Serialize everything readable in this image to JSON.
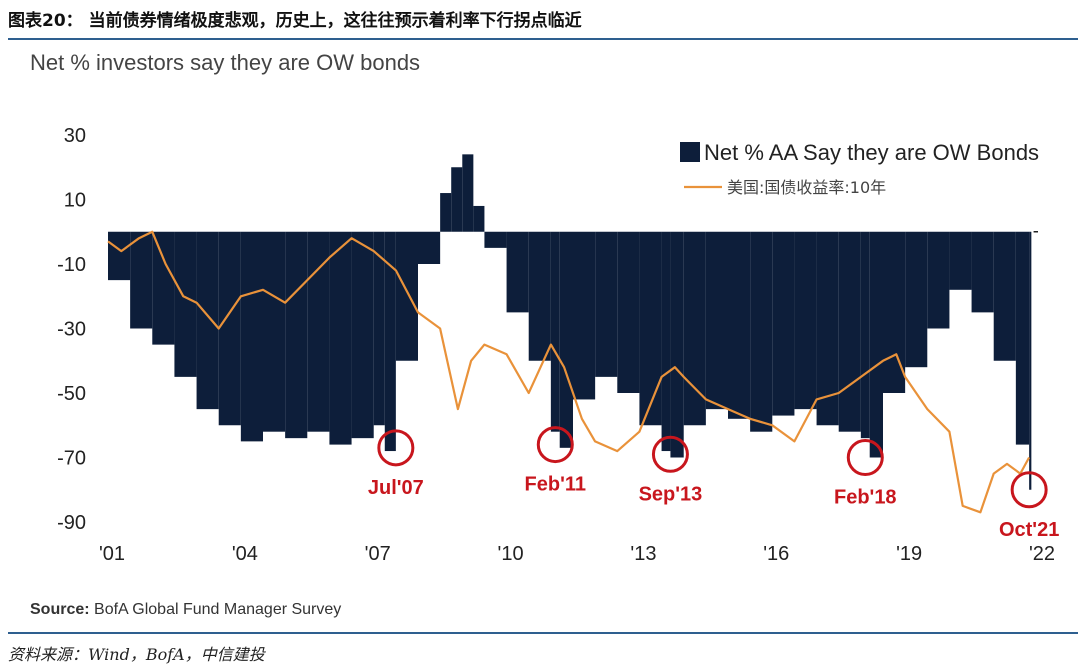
{
  "figure": {
    "title": "图表20： 当前债券情绪极度悲观，历史上，这往往预示着利率下行拐点临近",
    "footer": "资料来源：Wind，BofA，中信建投"
  },
  "colors": {
    "bars": "#0d1e3a",
    "line": "#e9923a",
    "annotation": "#c8161d",
    "rule": "#2e5f8f"
  },
  "chart_data": {
    "type": "bar",
    "title": "Net % investors say they are OW bonds",
    "source_label": "Source:",
    "source_text": "BofA Global Fund Manager Survey",
    "xlabel": "",
    "ylabel": "",
    "ylim": [
      -90,
      30
    ],
    "xlim": [
      2001.0,
      2022.0
    ],
    "y_ticks": [
      30,
      10,
      -10,
      -30,
      -50,
      -70,
      -90
    ],
    "y_tick_labels": [
      "30",
      "10",
      "-10",
      "-30",
      "-50",
      "-70",
      "-90"
    ],
    "x_ticks": [
      2001,
      2004,
      2007,
      2010,
      2013,
      2016,
      2019,
      2022
    ],
    "x_tick_labels": [
      "'01",
      "'04",
      "'07",
      "'10",
      "'13",
      "'16",
      "'19",
      "'22"
    ],
    "legend": {
      "position": "top-right"
    },
    "series": [
      {
        "name": "Net % AA Say they are OW Bonds",
        "kind": "bar",
        "x": [
          2001.0,
          2001.5,
          2002.0,
          2002.5,
          2003.0,
          2003.5,
          2004.0,
          2004.5,
          2005.0,
          2005.5,
          2006.0,
          2006.5,
          2007.0,
          2007.25,
          2007.5,
          2008.0,
          2008.5,
          2008.75,
          2009.0,
          2009.25,
          2009.5,
          2010.0,
          2010.5,
          2011.0,
          2011.2,
          2011.5,
          2012.0,
          2012.5,
          2013.0,
          2013.5,
          2013.7,
          2014.0,
          2014.5,
          2015.0,
          2015.5,
          2016.0,
          2016.5,
          2017.0,
          2017.5,
          2018.0,
          2018.2,
          2018.5,
          2019.0,
          2019.5,
          2020.0,
          2020.5,
          2021.0,
          2021.5,
          2021.8
        ],
        "values": [
          -15,
          -30,
          -35,
          -45,
          -55,
          -60,
          -65,
          -62,
          -64,
          -62,
          -66,
          -64,
          -60,
          -68,
          -40,
          -10,
          12,
          20,
          24,
          8,
          -5,
          -25,
          -40,
          -62,
          -67,
          -52,
          -45,
          -50,
          -60,
          -68,
          -70,
          -60,
          -55,
          -58,
          -62,
          -57,
          -55,
          -60,
          -62,
          -64,
          -70,
          -50,
          -42,
          -30,
          -18,
          -25,
          -40,
          -66,
          -80
        ]
      },
      {
        "name": "美国:国债收益率:10年",
        "kind": "line",
        "x": [
          2001.0,
          2001.3,
          2001.7,
          2002.0,
          2002.3,
          2002.7,
          2003.0,
          2003.5,
          2004.0,
          2004.5,
          2005.0,
          2005.5,
          2006.0,
          2006.5,
          2007.0,
          2007.5,
          2008.0,
          2008.5,
          2008.9,
          2009.2,
          2009.5,
          2010.0,
          2010.5,
          2011.0,
          2011.3,
          2011.7,
          2012.0,
          2012.5,
          2013.0,
          2013.5,
          2013.8,
          2014.0,
          2014.5,
          2015.0,
          2015.5,
          2016.0,
          2016.5,
          2017.0,
          2017.5,
          2018.0,
          2018.5,
          2018.8,
          2019.0,
          2019.5,
          2020.0,
          2020.3,
          2020.7,
          2021.0,
          2021.3,
          2021.6,
          2021.8
        ],
        "values": [
          -3,
          -6,
          -2,
          0,
          -10,
          -20,
          -22,
          -30,
          -20,
          -18,
          -22,
          -15,
          -8,
          -2,
          -6,
          -12,
          -25,
          -30,
          -55,
          -40,
          -35,
          -38,
          -50,
          -35,
          -42,
          -58,
          -65,
          -68,
          -62,
          -45,
          -42,
          -45,
          -52,
          -55,
          -58,
          -60,
          -65,
          -52,
          -50,
          -45,
          -40,
          -38,
          -45,
          -55,
          -62,
          -85,
          -87,
          -75,
          -72,
          -75,
          -70
        ]
      }
    ],
    "annotations": [
      {
        "label": "Jul'07",
        "x": 2007.5,
        "y": -67
      },
      {
        "label": "Feb'11",
        "x": 2011.1,
        "y": -66
      },
      {
        "label": "Sep'13",
        "x": 2013.7,
        "y": -69
      },
      {
        "label": "Feb'18",
        "x": 2018.1,
        "y": -70
      },
      {
        "label": "Oct'21",
        "x": 2021.8,
        "y": -80
      }
    ]
  }
}
